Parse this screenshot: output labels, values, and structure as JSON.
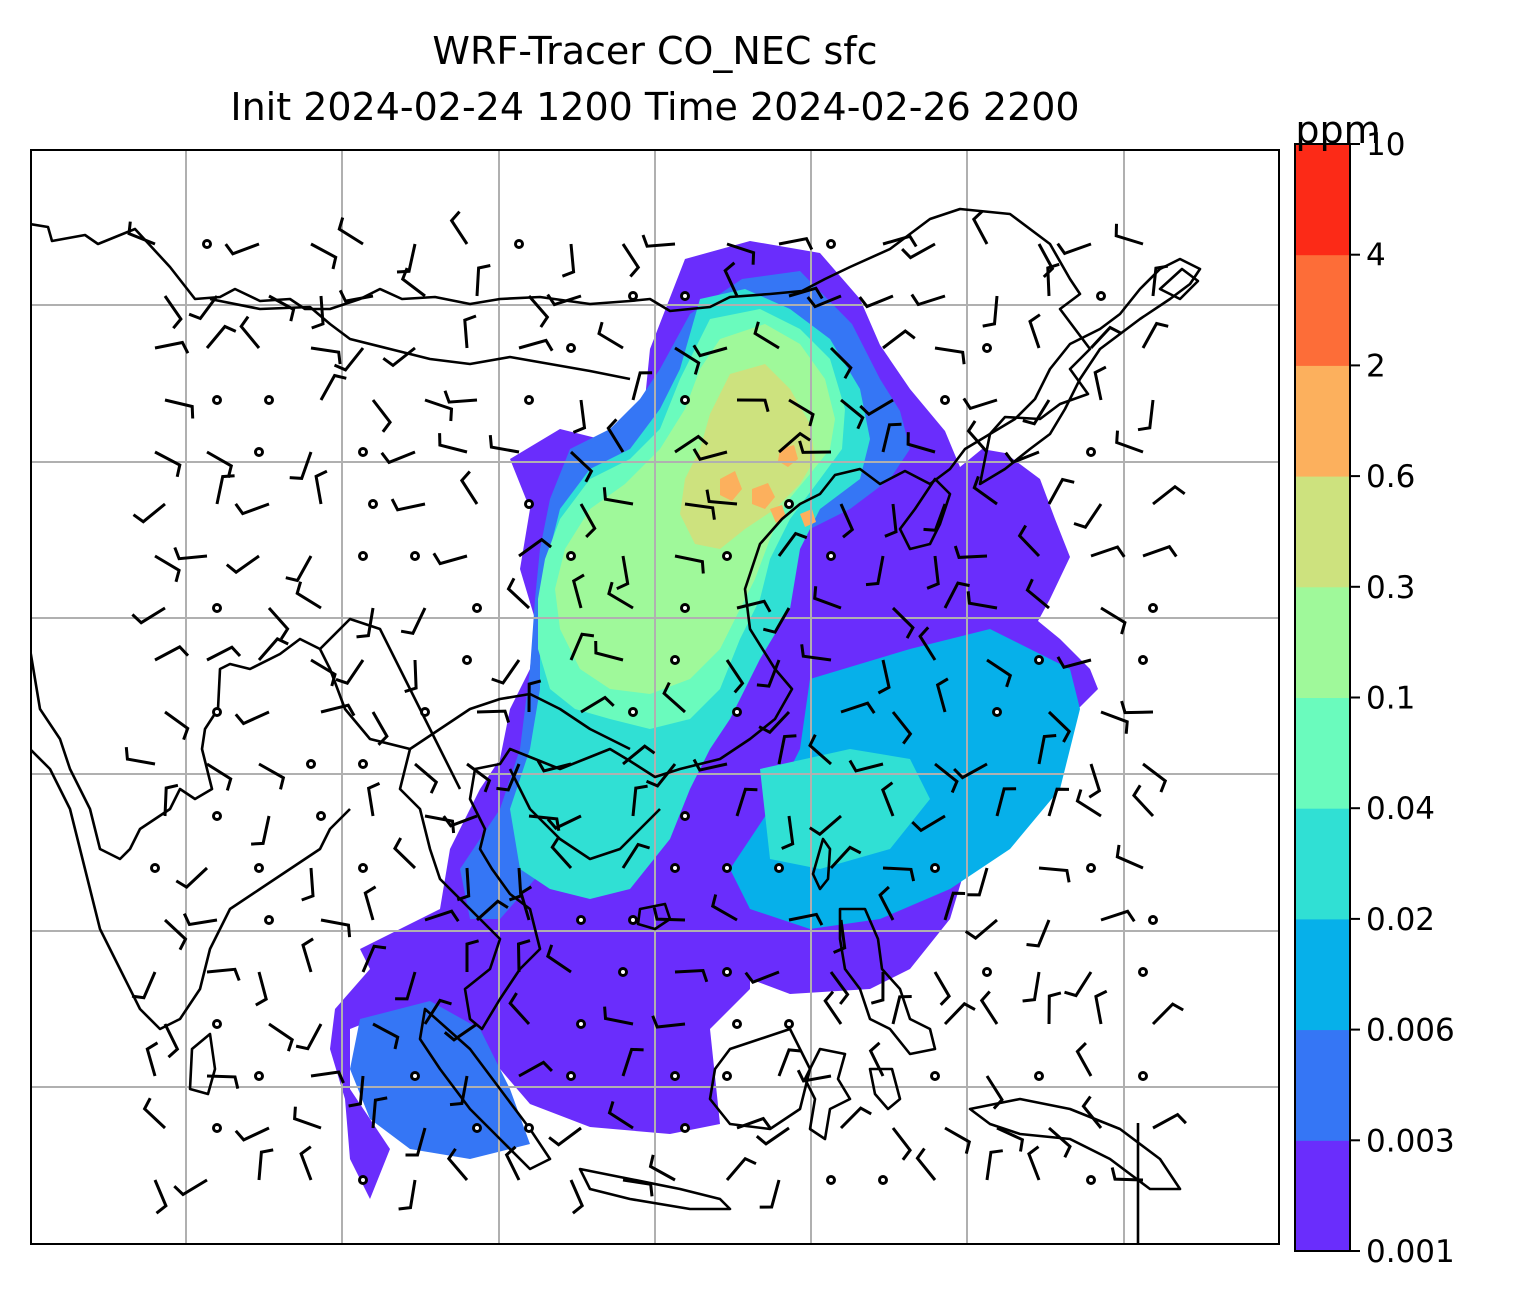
{
  "title": {
    "line1": "WRF-Tracer CO_NEC sfc",
    "line2": "Init 2024-02-24 1200 Time 2024-02-26 2200"
  },
  "colorbar": {
    "unit": "ppm",
    "levels": [
      "0.001",
      "0.003",
      "0.006",
      "0.02",
      "0.04",
      "0.1",
      "0.3",
      "0.6",
      "2",
      "4",
      "10"
    ],
    "colors": [
      "#6a2dfc",
      "#3576f5",
      "#06b0ea",
      "#30e0d4",
      "#6afbbd",
      "#9ff99a",
      "#cde27e",
      "#fcb05d",
      "#fd6d38",
      "#fc2a17"
    ]
  },
  "map": {
    "gridlines": "on",
    "grid_color": "#b0b0b0",
    "coastline_color": "#000000",
    "features": [
      "coastlines",
      "country-borders",
      "wind-barbs",
      "tracer-concentration-fill"
    ]
  }
}
